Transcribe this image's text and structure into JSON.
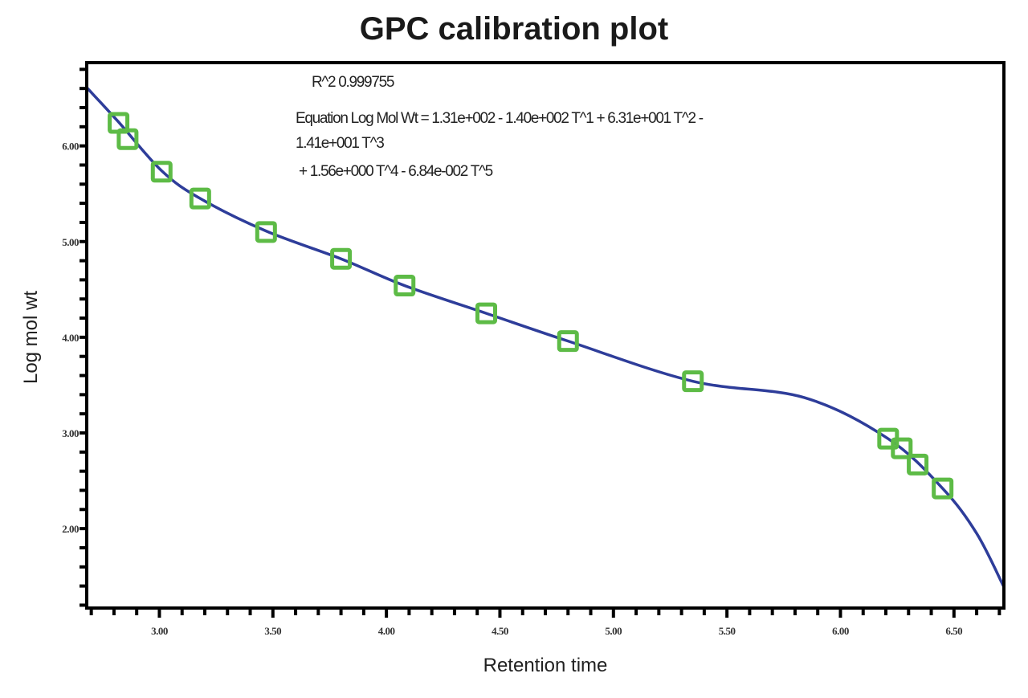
{
  "chart_data": {
    "type": "scatter",
    "title": "GPC calibration plot",
    "xlabel": "Retention time",
    "ylabel": "Log mol wt",
    "xlim": [
      2.68,
      6.72
    ],
    "ylim": [
      1.17,
      6.87
    ],
    "xticks": [
      "3.00",
      "3.50",
      "4.00",
      "4.50",
      "5.00",
      "5.50",
      "6.00",
      "6.50"
    ],
    "yticks": [
      "2.00",
      "3.00",
      "4.00",
      "5.00",
      "6.00"
    ],
    "grid": false,
    "annotations": [
      "R^2 0.999755",
      "Equation Log Mol Wt = 1.31e+002 - 1.40e+002 T^1 + 6.31e+001 T^2 -",
      "1.41e+001 T^3",
      " + 1.56e+000 T^4 - 6.84e-002 T^5"
    ],
    "points": {
      "color": "#5dbb46",
      "marker": "hollow-square",
      "x": [
        2.82,
        2.86,
        3.01,
        3.18,
        3.47,
        3.8,
        4.08,
        4.44,
        4.8,
        5.35,
        6.21,
        6.27,
        6.34,
        6.45
      ],
      "y": [
        6.24,
        6.07,
        5.73,
        5.45,
        5.1,
        4.82,
        4.54,
        4.25,
        3.96,
        3.54,
        2.94,
        2.84,
        2.67,
        2.42
      ]
    },
    "fit_curve": {
      "color": "#2e3d9a",
      "x": [
        2.68,
        2.82,
        3.01,
        3.18,
        3.47,
        3.8,
        4.08,
        4.44,
        4.8,
        5.35,
        5.84,
        6.21,
        6.45,
        6.6,
        6.72
      ],
      "y": [
        6.61,
        6.25,
        5.74,
        5.45,
        5.11,
        4.82,
        4.54,
        4.25,
        3.96,
        3.54,
        3.37,
        2.94,
        2.42,
        1.95,
        1.39
      ]
    }
  }
}
